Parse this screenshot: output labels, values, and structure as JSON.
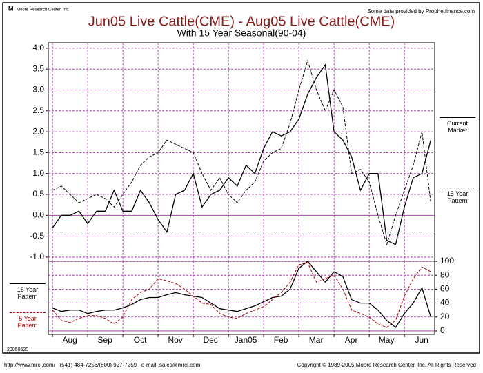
{
  "header": {
    "logo": "Moore Research Center, Inc.",
    "source": "Some data provided by Prophetfinance.com"
  },
  "chart_data": [
    {
      "type": "line",
      "title": "Jun05 Live Cattle(CME) - Aug05 Live Cattle(CME)",
      "subtitle": "With 15 Year Seasonal(90-04)",
      "x": [
        0,
        0.25,
        0.5,
        0.75,
        1,
        1.25,
        1.5,
        1.75,
        2,
        2.25,
        2.5,
        2.75,
        3,
        3.25,
        3.5,
        3.75,
        4,
        4.25,
        4.5,
        4.75,
        5,
        5.25,
        5.5,
        5.75,
        6,
        6.25,
        6.5,
        6.75,
        7,
        7.25,
        7.5,
        7.75,
        8,
        8.25,
        8.5,
        8.75,
        9,
        9.25,
        9.5,
        9.75,
        10,
        10.25,
        10.5,
        10.75
      ],
      "series": [
        {
          "name": "Current Market",
          "color": "#000000",
          "style": "solid",
          "values": [
            -0.3,
            0.0,
            0.0,
            0.1,
            -0.2,
            0.1,
            0.1,
            0.6,
            0.1,
            0.1,
            0.6,
            0.3,
            -0.1,
            -0.4,
            0.5,
            0.6,
            1.0,
            0.2,
            0.5,
            0.6,
            0.9,
            0.7,
            1.2,
            1.0,
            1.6,
            2.0,
            1.9,
            2.0,
            2.3,
            2.9,
            3.3,
            3.6,
            2.0,
            1.8,
            1.4,
            0.6,
            1.0,
            1.0,
            -0.6,
            -0.7,
            0.2,
            0.9,
            1.0,
            1.8
          ]
        },
        {
          "name": "15 Year Pattern",
          "color": "#000000",
          "style": "dashed",
          "values": [
            0.6,
            0.7,
            0.5,
            0.3,
            0.4,
            0.5,
            0.4,
            0.2,
            0.5,
            0.8,
            1.2,
            1.4,
            1.5,
            1.8,
            1.7,
            1.6,
            1.5,
            1.0,
            0.6,
            0.9,
            0.5,
            0.3,
            0.6,
            0.8,
            1.3,
            1.5,
            1.6,
            2.2,
            3.0,
            3.7,
            3.0,
            2.5,
            3.0,
            2.6,
            1.0,
            1.1,
            0.8,
            0.0,
            -0.7,
            0.0,
            0.6,
            1.2,
            2.0,
            0.3
          ]
        }
      ],
      "xlim": [
        -0.12,
        10.86
      ],
      "ylim": [
        -1.1,
        4.13
      ],
      "yticks": [
        {
          "value": -1,
          "label": "-1.0"
        },
        -0.5,
        {
          "value": 0,
          "label": "0.0"
        },
        0.5,
        {
          "value": 1,
          "label": "1.0"
        },
        1.5,
        {
          "value": 2,
          "label": "2.0"
        },
        2.5,
        {
          "value": 3,
          "label": "3.0"
        },
        3.5,
        {
          "value": 4,
          "label": "4.0"
        }
      ],
      "grid": true,
      "legend": "right"
    },
    {
      "type": "line",
      "x": [
        0,
        0.25,
        0.5,
        0.75,
        1,
        1.25,
        1.5,
        1.75,
        2,
        2.25,
        2.5,
        2.75,
        3,
        3.25,
        3.5,
        3.75,
        4,
        4.25,
        4.5,
        4.75,
        5,
        5.25,
        5.5,
        5.75,
        6,
        6.25,
        6.5,
        6.75,
        7,
        7.25,
        7.5,
        7.75,
        8,
        8.25,
        8.5,
        8.75,
        9,
        9.25,
        9.5,
        9.75,
        10,
        10.25,
        10.5,
        10.75
      ],
      "series": [
        {
          "name": "15 Year Pattern",
          "color": "#000000",
          "style": "solid",
          "values": [
            33,
            28,
            30,
            30,
            25,
            28,
            30,
            30,
            33,
            38,
            45,
            48,
            48,
            52,
            55,
            52,
            50,
            48,
            40,
            32,
            30,
            28,
            32,
            36,
            42,
            48,
            50,
            60,
            90,
            100,
            85,
            70,
            85,
            78,
            45,
            40,
            40,
            30,
            15,
            5,
            25,
            40,
            62,
            20
          ]
        },
        {
          "name": "5 Year Pattern",
          "color": "#a00000",
          "style": "dashed",
          "values": [
            30,
            15,
            12,
            18,
            22,
            22,
            18,
            10,
            20,
            45,
            55,
            60,
            75,
            72,
            68,
            60,
            50,
            40,
            38,
            25,
            20,
            18,
            25,
            30,
            35,
            45,
            55,
            70,
            95,
            98,
            70,
            75,
            80,
            60,
            30,
            25,
            20,
            10,
            5,
            15,
            50,
            75,
            92,
            85
          ]
        }
      ],
      "xlim": [
        -0.12,
        10.86
      ],
      "ylim": [
        -5,
        100
      ],
      "xticks": [
        {
          "value": 0,
          "label": "Aug"
        },
        {
          "value": 1,
          "label": "Sep"
        },
        {
          "value": 2,
          "label": "Oct"
        },
        {
          "value": 3,
          "label": "Nov"
        },
        {
          "value": 4,
          "label": "Dec"
        },
        {
          "value": 5,
          "label": "Jan05"
        },
        {
          "value": 6,
          "label": "Feb"
        },
        {
          "value": 7,
          "label": "Mar"
        },
        {
          "value": 8,
          "label": "Apr"
        },
        {
          "value": 9,
          "label": "May"
        },
        {
          "value": 10,
          "label": "Jun"
        }
      ],
      "yticks": [
        0,
        20,
        40,
        60,
        80,
        100
      ],
      "grid": true,
      "legend": "left"
    }
  ],
  "footer": {
    "date": "20050620",
    "contact": "http://www.mrci.com/   (541) 484-7256/(800) 927-7259   e-mail: sales@mrci.com",
    "copyright": "Copyright © 1989-2005 Moore Research Center, Inc. All Rights Reserved"
  }
}
